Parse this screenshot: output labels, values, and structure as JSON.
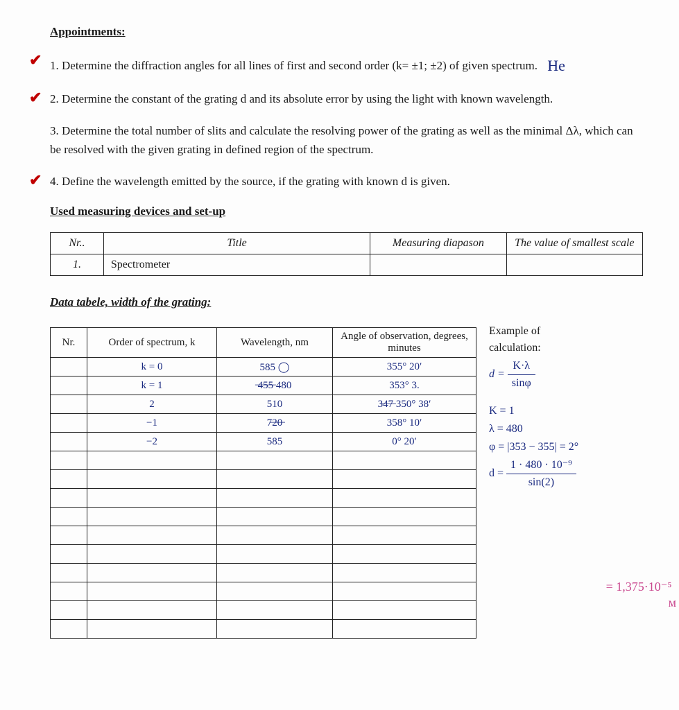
{
  "headings": {
    "appointments": "Appointments:",
    "devices": "Used measuring devices and set-up",
    "data": "Data tabele, width of the grating:"
  },
  "items": {
    "i1": "1. Determine the diffraction angles for all lines of first and second order (k= ±1; ±2) of given spectrum.",
    "i1_hand": "He",
    "i2": "2. Determine the constant of the grating d and its absolute error by using the light with known wavelength.",
    "i3": "3. Determine the total number of slits and calculate the resolving power of the grating as well as the minimal Δλ, which can be resolved with the given grating in defined region of the spectrum.",
    "i4": "4. Define the wavelength emitted by the source, if the grating with known d is given."
  },
  "devices": {
    "headers": {
      "nr": "Nr..",
      "title": "Title",
      "diap": "Measuring diapason",
      "scale": "The value of smallest scale"
    },
    "rows": [
      {
        "nr": "1.",
        "title": "Spectrometer",
        "diap": "",
        "scale": ""
      }
    ]
  },
  "data_table": {
    "headers": {
      "nr": "Nr.",
      "k": "Order of spectrum, k",
      "wl": "Wavelength, nm",
      "ang": "Angle of observation, degrees, minutes"
    },
    "rows": [
      {
        "k": "k = 0",
        "wl": "585 ◯",
        "ang": "355° 20′"
      },
      {
        "k": "k = 1",
        "wl": "̶4̶5̶5̶ 480",
        "ang": "353° 3."
      },
      {
        "k": "2",
        "wl": "510",
        "ang": "3̶4̶7̶ 350° 38′"
      },
      {
        "k": "−1",
        "wl": "7̶2̶0̶",
        "ang": "358° 10′"
      },
      {
        "k": "−2",
        "wl": "585",
        "ang": "0° 20′"
      }
    ],
    "blank_rows": 10
  },
  "side": {
    "printed1": "Example of",
    "printed2": "calculation:",
    "line_d_eq": "d =",
    "frac_num": "K·λ",
    "frac_den": "sinφ",
    "k": "K = 1",
    "lambda": "λ = 480",
    "phi": "φ = |353 − 355| = 2°",
    "d_eq": "d =",
    "d_num": "1 · 480 · 10⁻⁹",
    "d_den": "sin(2)"
  },
  "far_right": {
    "val": "= 1,375·10⁻⁵",
    "unit": "м"
  }
}
